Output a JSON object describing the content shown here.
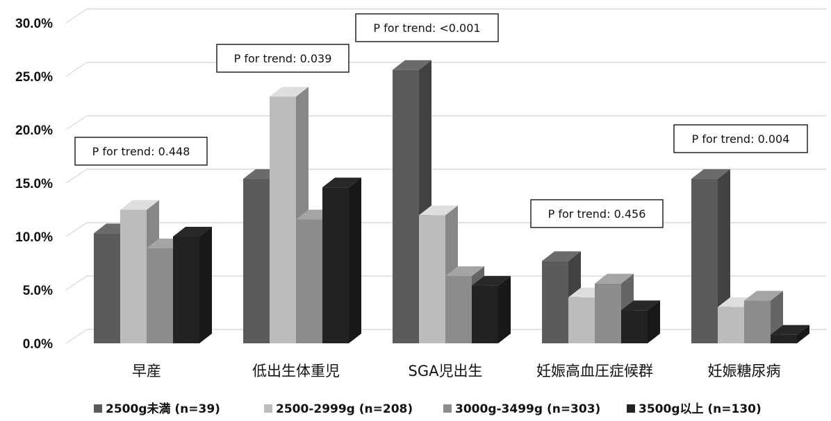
{
  "chart_data": {
    "type": "bar",
    "three_d": true,
    "categories": [
      "早産",
      "低出生体重児",
      "SGA児出生",
      "妊娠高血圧症候群",
      "妊娠糖尿病"
    ],
    "series": [
      {
        "name": "2500g未満 (n=39)",
        "color": "#5b5b5b",
        "values": [
          10.3,
          15.4,
          25.6,
          7.7,
          15.4
        ]
      },
      {
        "name": "2500-2999g (n=208)",
        "color": "#bcbcbc",
        "values": [
          12.5,
          23.1,
          12.0,
          4.3,
          3.4
        ]
      },
      {
        "name": "3000g-3499g (n=303)",
        "color": "#8c8c8c",
        "values": [
          8.9,
          11.6,
          6.3,
          5.6,
          4.0
        ]
      },
      {
        "name": "3500g以上 (n=130)",
        "color": "#222222",
        "values": [
          10.0,
          14.6,
          5.4,
          3.1,
          0.8
        ]
      }
    ],
    "yaxis": {
      "min": 0,
      "max": 30,
      "step": 5,
      "ticks": [
        "0.0%",
        "5.0%",
        "10.0%",
        "15.0%",
        "20.0%",
        "25.0%",
        "30.0%"
      ]
    },
    "grid": true,
    "legend_position": "bottom",
    "annotations": [
      "P for trend: 0.448",
      "P for trend: 0.039",
      "P for trend: <0.001",
      "P for trend: 0.456",
      "P for trend: 0.004"
    ]
  }
}
